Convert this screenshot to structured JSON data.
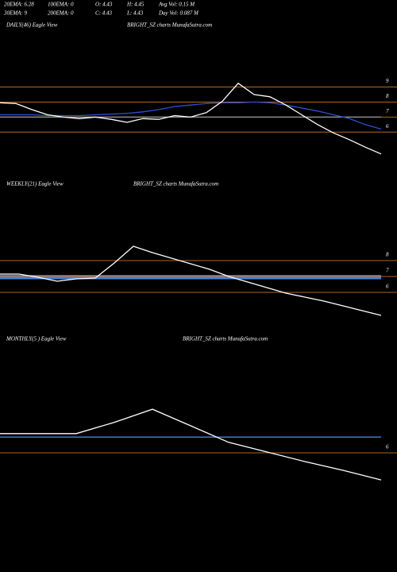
{
  "header": {
    "rows": [
      [
        "20EMA: 6.28",
        "100EMA: 0",
        "O: 4.43",
        "H: 4.45",
        "Avg Vol: 0.15 M"
      ],
      [
        "30EMA: 9",
        "200EMA: 0",
        "C: 4.43",
        "L: 4.43",
        "Day Vol: 0.087 M"
      ]
    ]
  },
  "chart_data": [
    {
      "type": "line",
      "title": "DAILY(46) Eagle  View",
      "subtitle": "BRIGHT_SZ charts MunafaSutra.com",
      "categories": [
        null,
        null,
        null,
        null,
        null,
        null,
        null,
        null,
        null,
        null,
        null,
        null,
        null,
        null,
        null,
        null,
        null,
        null,
        null,
        null,
        null,
        null,
        null,
        null,
        null
      ],
      "series": [
        {
          "color": "#9a9a9a",
          "values": [
            7.0,
            7.0,
            7.0,
            7.0,
            7.0,
            7.0,
            7.0,
            7.0,
            7.0,
            7.0,
            7.0,
            7.0,
            7.0,
            7.0,
            7.0,
            7.0,
            7.0,
            7.0,
            7.0,
            7.0,
            7.0,
            7.0,
            7.0,
            7.0,
            7.0
          ]
        },
        {
          "color": "#2a52d4",
          "values": [
            7.15,
            7.15,
            7.15,
            7.1,
            7.1,
            7.1,
            7.15,
            7.2,
            7.25,
            7.35,
            7.5,
            7.7,
            7.8,
            7.9,
            7.95,
            7.95,
            8.0,
            7.95,
            7.8,
            7.6,
            7.4,
            7.15,
            6.9,
            6.5,
            6.2
          ]
        },
        {
          "color": "#ffffff",
          "values": [
            7.95,
            7.9,
            7.5,
            7.15,
            7.0,
            6.9,
            7.0,
            6.85,
            6.65,
            6.9,
            6.85,
            7.1,
            7.0,
            7.3,
            8.05,
            9.25,
            8.5,
            8.35,
            7.8,
            7.15,
            6.5,
            5.95,
            5.5,
            5.0,
            4.55
          ]
        }
      ],
      "ylim": [
        2.9,
        13.2
      ],
      "yticks": [
        6,
        7,
        8,
        9
      ],
      "grid": true,
      "grid_color": "#b5651d"
    },
    {
      "type": "line",
      "title": "WEEKLY(21) Eagle  View",
      "subtitle": "BRIGHT_SZ charts MunafaSutra.com",
      "categories": [
        null,
        null,
        null,
        null,
        null,
        null,
        null,
        null,
        null,
        null,
        null,
        null,
        null,
        null,
        null,
        null,
        null,
        null,
        null,
        null,
        null
      ],
      "series": [
        {
          "color": "#9a9a9a",
          "values": [
            7.05,
            7.05,
            7.05,
            7.05,
            7.05,
            7.05,
            7.05,
            7.05,
            7.05,
            7.05,
            7.05,
            7.05,
            7.05,
            7.05,
            7.05,
            7.05,
            7.05,
            7.05,
            7.05,
            7.05,
            7.05
          ]
        },
        {
          "color": "#4f7fd6",
          "values": [
            6.9,
            6.9,
            6.9,
            6.9,
            6.9,
            6.9,
            6.9,
            6.9,
            6.9,
            6.9,
            6.9,
            6.9,
            6.9,
            6.9,
            6.9,
            6.9,
            6.9,
            6.9,
            6.9,
            6.9,
            6.9
          ]
        },
        {
          "color": "#ffffff",
          "values": [
            7.15,
            7.15,
            6.95,
            6.7,
            6.85,
            6.9,
            7.85,
            8.9,
            8.5,
            8.15,
            7.8,
            7.45,
            7.0,
            6.65,
            6.3,
            5.95,
            5.7,
            5.45,
            5.15,
            4.85,
            4.55
          ]
        }
      ],
      "ylim": [
        3.65,
        12.9
      ],
      "yticks": [
        6,
        7,
        8
      ],
      "grid": true,
      "grid_color": "#b5651d"
    },
    {
      "type": "line",
      "title": "MONTHLY(5            ) Eagle  View",
      "subtitle": "BRIGHT_SZ charts MunafaSutra.com",
      "categories": [
        null,
        null,
        null,
        null,
        null,
        null,
        null,
        null,
        null,
        null,
        null
      ],
      "series": [
        {
          "color": "#4f7fd6",
          "values": [
            6.9,
            6.9,
            6.9,
            6.9,
            6.9,
            6.9,
            6.9,
            6.9,
            6.9,
            6.9,
            6.9
          ]
        },
        {
          "color": "#ffffff",
          "values": [
            7.1,
            7.1,
            7.1,
            7.75,
            8.5,
            7.55,
            6.6,
            6.05,
            5.5,
            5.0,
            4.45
          ]
        }
      ],
      "ylim": [
        -0.6,
        12.6
      ],
      "yticks": [
        6
      ],
      "grid": true,
      "grid_color": "#b5651d"
    }
  ]
}
